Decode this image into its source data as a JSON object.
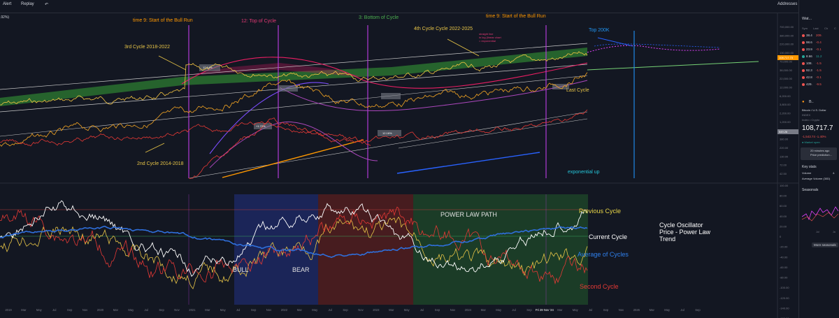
{
  "toolbar": {
    "alert_label": "Alert",
    "replay_label": "Replay",
    "addresses_label": "Addresses",
    "left_value": ".92%)"
  },
  "right_panel": {
    "watchlist_title": "Wat...",
    "columns": [
      "Sym",
      "Last",
      "Ch",
      "C"
    ],
    "rows": [
      {
        "sym": "38.4",
        "chg": "209.",
        "color": "#ef5350"
      },
      {
        "sym": "98.6",
        "chg": "-0.4",
        "color": "#ef5350"
      },
      {
        "sym": "23.9",
        "chg": "-0.1",
        "color": "#ef5350"
      },
      {
        "sym": "8.66",
        "chg": "11.2",
        "color": "#26a69a"
      },
      {
        "sym": "108.",
        "chg": "-1.5",
        "color": "#ef5350"
      },
      {
        "sym": "92.3",
        "chg": "-1.5",
        "color": "#ef5350"
      },
      {
        "sym": "42.8",
        "chg": "-0.1",
        "color": "#ef5350"
      },
      {
        "sym": "429.",
        "chg": "-9.5",
        "color": "#ef5350"
      }
    ],
    "symbol_short": "B..",
    "symbol_name": "Bitcoin / U.S. Dollar",
    "exchange": "INDEX",
    "category": "Index • Crypto",
    "price": "108,717.7",
    "change": "-1,543.74  -1.40%",
    "market_status": "● Market open",
    "news_time": "20 minutes ago",
    "news_title": "Price prediction...",
    "key_stats": "Key stats",
    "volume_label": "Volume",
    "volume_value": "4.",
    "avg_volume": "Average Volume (30D)",
    "seasonals": "Seasonals",
    "more_seasonals": "More seasonals",
    "season_ticks": [
      "Jul",
      "Ja"
    ]
  },
  "annotations": {
    "top_labels": {
      "bull_run_left": "time 9: Start of the Bull Run",
      "top_of_cycle": "12: Top of Cycle",
      "bottom_of_cycle": "3: Bottom of Cycle",
      "bull_run_right": "time 9: Start of the Bull Run"
    },
    "cycle_3": "3rd Cycle 2018-2022",
    "cycle_4": "4th Cycle Cycle 2022-2025",
    "cycle_2": "2nd Cycle 2014-2018",
    "last_cycle": "Last Cycle",
    "top_200k": "Top 200K",
    "exponential": "exponential up",
    "small_note": "straight line\nin log (linear chart\n= exponential",
    "power_law_path": "POWER LAW PATH",
    "bull": "BULL",
    "bear": "BEAR",
    "previous_cycle": "Previous Cycle",
    "current_cycle": "Current Cycle",
    "average_of_cycles": "Average of Cycles",
    "second_cycle": "Second Cycle",
    "oscillator_title": "Cycle Oscillator\nPrice - Power Law\nTrend",
    "badge_1": "12.14%",
    "badge_2": "12.16%",
    "badge_3": "+1.72%"
  },
  "chart_data": [
    {
      "type": "line",
      "title": "",
      "scale": "log",
      "y_tick_labels": [
        "700,000.00",
        "380,000.00",
        "220,000.00",
        "130,000.00",
        "70,000.00",
        "38,000.00",
        "22,000.00",
        "12,000.00",
        "6,200.00",
        "3,800.00",
        "2,200.00",
        "1,200.00",
        "580.00",
        "380.00",
        "220.00",
        "130.00",
        "72.00",
        "42.50"
      ],
      "price_tags": [
        "108,717.73",
        "549.26"
      ],
      "x_tick_labels": [
        "2019",
        "Mar",
        "May",
        "Jul",
        "Sep",
        "Nov",
        "2020",
        "Mar",
        "May",
        "Jul",
        "Sep",
        "Nov",
        "2021",
        "Mar",
        "May",
        "Jul",
        "Sep",
        "Nov",
        "2022",
        "Mar",
        "May",
        "Jul",
        "Sep",
        "Nov",
        "2023",
        "Mar",
        "May",
        "Jul",
        "Sep",
        "Nov",
        "2024",
        "Mar",
        "May",
        "Jul",
        "Sep",
        "Fri 29 Nov '24",
        "Mar",
        "May",
        "Jul",
        "Sep",
        "Nov",
        "2026",
        "Mar",
        "May",
        "Jul",
        "Sep"
      ],
      "series": [
        {
          "name": "4th Cycle Cycle 2022-2025",
          "color": "#f5c542"
        },
        {
          "name": "3rd Cycle 2018-2022",
          "color": "#f5a623"
        },
        {
          "name": "2nd Cycle 2014-2018",
          "color": "#e53935"
        }
      ]
    },
    {
      "type": "line",
      "title": "Cycle Oscillator Price - Power Law Trend",
      "ylim": [
        -180,
        100
      ],
      "y_tick_labels": [
        "100.00",
        "80.00",
        "60.00",
        "40.00",
        "20.00",
        "0",
        "-20.00",
        "-40.00",
        "-60.00",
        "-80.00",
        "-100.00",
        "-120.00",
        "-140.00",
        "-160.00"
      ],
      "regions": [
        "BULL",
        "BEAR",
        "POWER LAW PATH"
      ],
      "series": [
        {
          "name": "Previous Cycle",
          "color": "#e8c547"
        },
        {
          "name": "Current Cycle",
          "color": "#ffffff"
        },
        {
          "name": "Average of Cycles",
          "color": "#2f6fdc"
        },
        {
          "name": "Second Cycle",
          "color": "#e53935"
        }
      ]
    }
  ]
}
